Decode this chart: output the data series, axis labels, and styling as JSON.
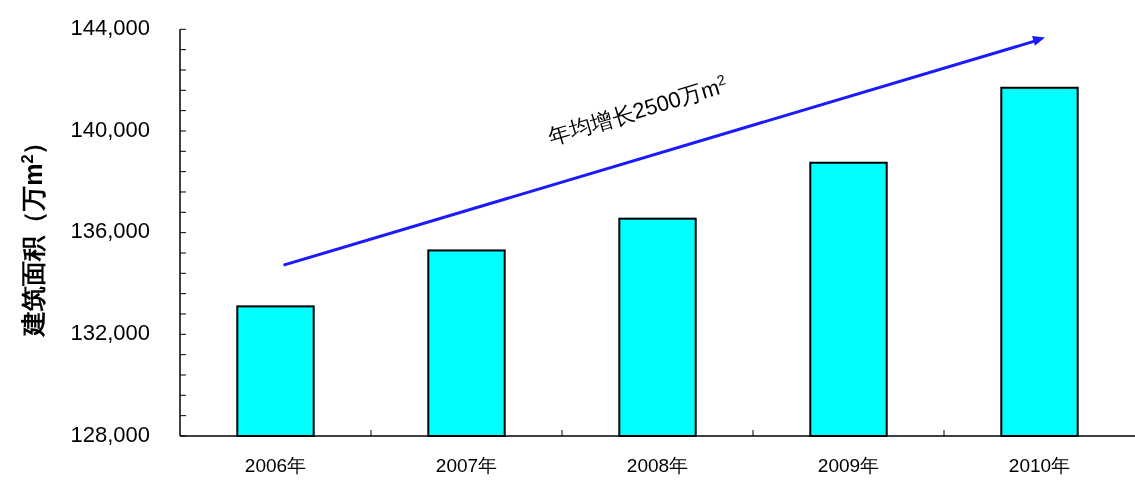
{
  "chart_data": {
    "type": "bar",
    "ylabel": "建筑面积（万m$^{2}$）",
    "categories": [
      "2006年",
      "2007年",
      "2008年",
      "2009年",
      "2010年"
    ],
    "values": [
      133100,
      135300,
      136550,
      138750,
      141700
    ],
    "color": "#00ffff",
    "ylim": [
      128000,
      144000
    ],
    "yticks": [
      {
        "value": 128000,
        "label": "128,000"
      },
      {
        "value": 128800,
        "label": null
      },
      {
        "value": 129600,
        "label": null
      },
      {
        "value": 130400,
        "label": null
      },
      {
        "value": 131200,
        "label": null
      },
      {
        "value": 132000,
        "label": "132,000"
      },
      {
        "value": 132800,
        "label": null
      },
      {
        "value": 133600,
        "label": null
      },
      {
        "value": 134400,
        "label": null
      },
      {
        "value": 135200,
        "label": null
      },
      {
        "value": 136000,
        "label": "136,000"
      },
      {
        "value": 136800,
        "label": null
      },
      {
        "value": 137600,
        "label": null
      },
      {
        "value": 138400,
        "label": null
      },
      {
        "value": 139200,
        "label": null
      },
      {
        "value": 140000,
        "label": "140,000"
      },
      {
        "value": 140800,
        "label": null
      },
      {
        "value": 141600,
        "label": null
      },
      {
        "value": 142400,
        "label": null
      },
      {
        "value": 143200,
        "label": null
      },
      {
        "value": 144000,
        "label": "144,000"
      }
    ],
    "annotations": [
      "年均增长2500万m$^{2}$"
    ],
    "grid": false
  }
}
